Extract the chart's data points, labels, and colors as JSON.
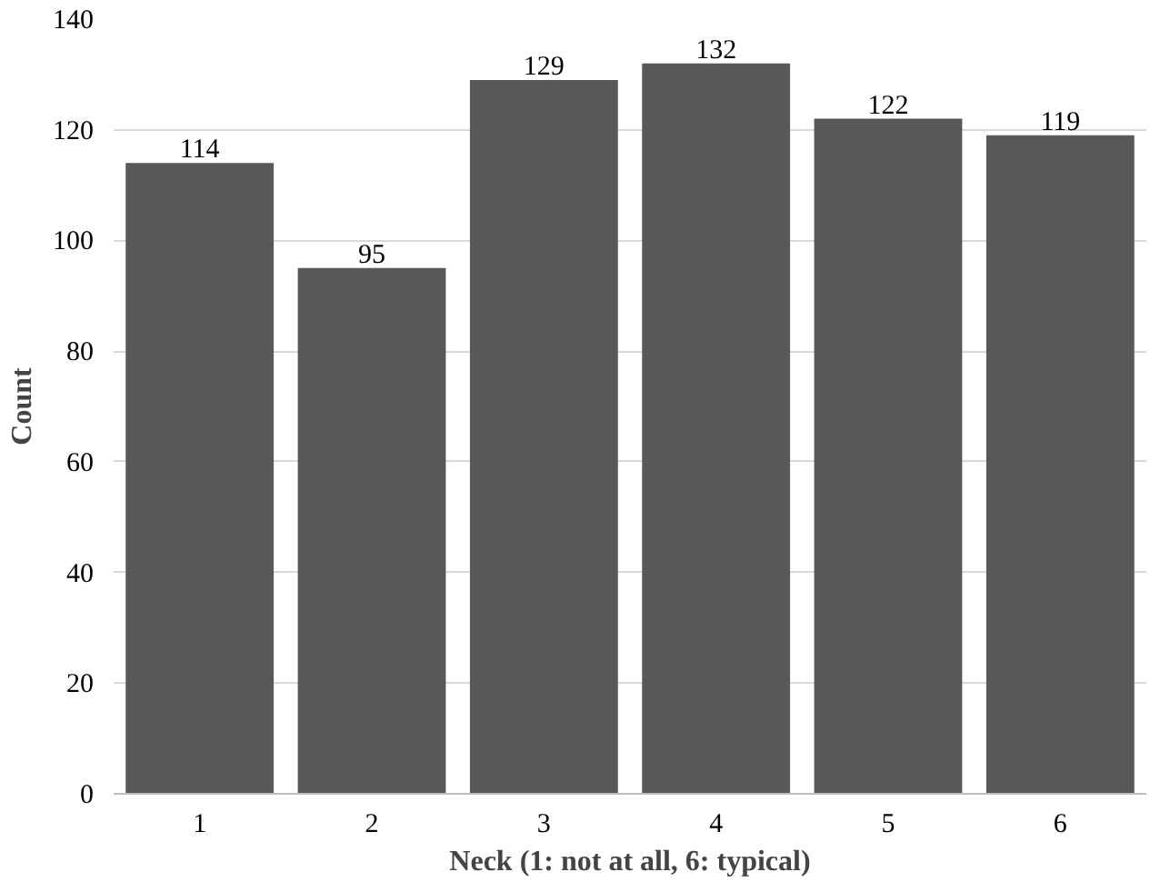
{
  "chart_data": {
    "type": "bar",
    "xlabel": "Neck (1: not at all, 6: typical)",
    "ylabel": "Count",
    "categories": [
      "1",
      "2",
      "3",
      "4",
      "5",
      "6"
    ],
    "values": [
      114,
      95,
      129,
      132,
      122,
      119
    ],
    "color": "#595959",
    "ylim": [
      0,
      140
    ],
    "yticks": [
      0,
      20,
      40,
      60,
      80,
      100,
      120,
      140
    ],
    "grid": "y",
    "data_labels": true
  }
}
